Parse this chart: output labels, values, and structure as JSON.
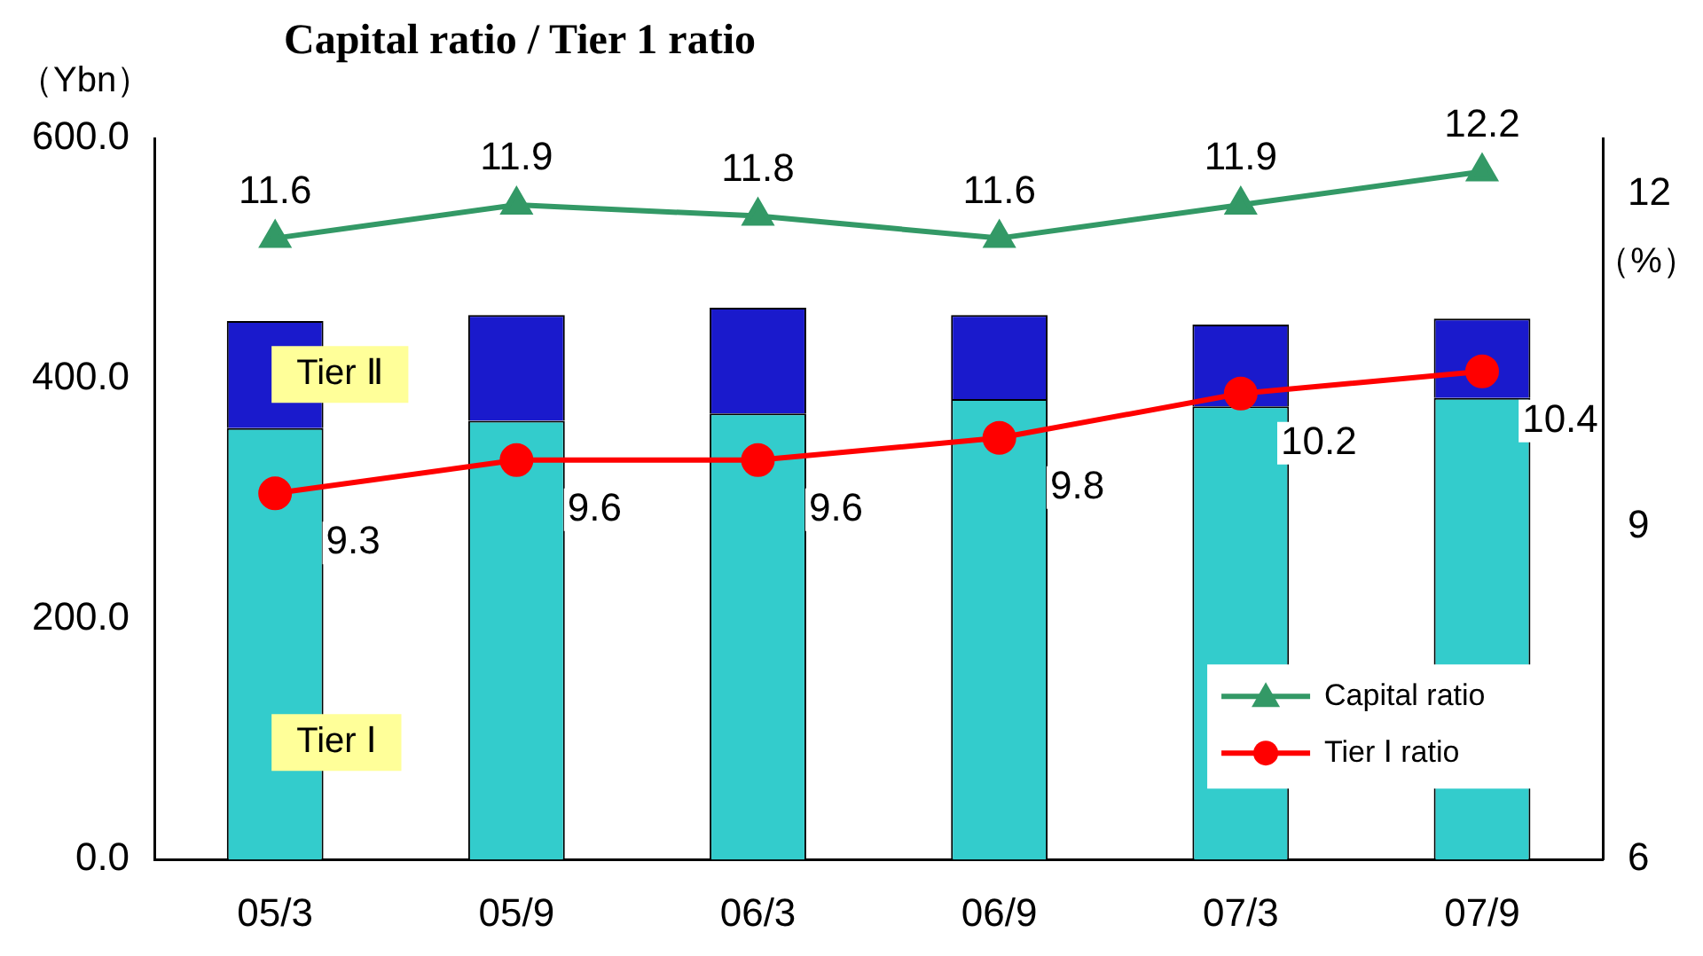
{
  "chart_data": {
    "type": "bar",
    "title": "Capital ratio / Tier 1 ratio",
    "ylabel": "（Ybn）",
    "y2label": "（%）",
    "categories": [
      "05/3",
      "05/9",
      "06/3",
      "06/9",
      "07/3",
      "07/9"
    ],
    "stacked": true,
    "series": [
      {
        "name": "Tier Ⅰ",
        "color": "#33cccc",
        "values": [
          359,
          365,
          371,
          383,
          377,
          384
        ]
      },
      {
        "name": "Tier Ⅱ",
        "color": "#1a1acc",
        "values": [
          89,
          88,
          88,
          70,
          68,
          66
        ]
      },
      {
        "name": "Capital ratio",
        "type": "line",
        "axis": "y2",
        "color": "#339966",
        "marker": "triangle",
        "values": [
          11.6,
          11.9,
          11.8,
          11.6,
          11.9,
          12.2
        ],
        "value_labels": [
          "11.6",
          "11.9",
          "11.8",
          "11.6",
          "11.9",
          "12.2"
        ]
      },
      {
        "name": "Tier Ⅰ ratio",
        "type": "line",
        "axis": "y2",
        "color": "#ff0000",
        "marker": "circle",
        "values": [
          9.3,
          9.6,
          9.6,
          9.8,
          10.2,
          10.4
        ],
        "value_labels": [
          "9.3",
          "9.6",
          "9.6",
          "9.8",
          "10.2",
          "10.4"
        ]
      }
    ],
    "ylim": [
      0,
      600
    ],
    "yticks": [
      {
        "value": 0,
        "label": "0.0"
      },
      {
        "value": 200,
        "label": "200.0"
      },
      {
        "value": 400,
        "label": "400.0"
      },
      {
        "value": 600,
        "label": "600.0"
      }
    ],
    "y2lim": [
      6,
      12.5
    ],
    "y2ticks": [
      6,
      9,
      12
    ],
    "grid": false,
    "legend": "bottom right"
  }
}
